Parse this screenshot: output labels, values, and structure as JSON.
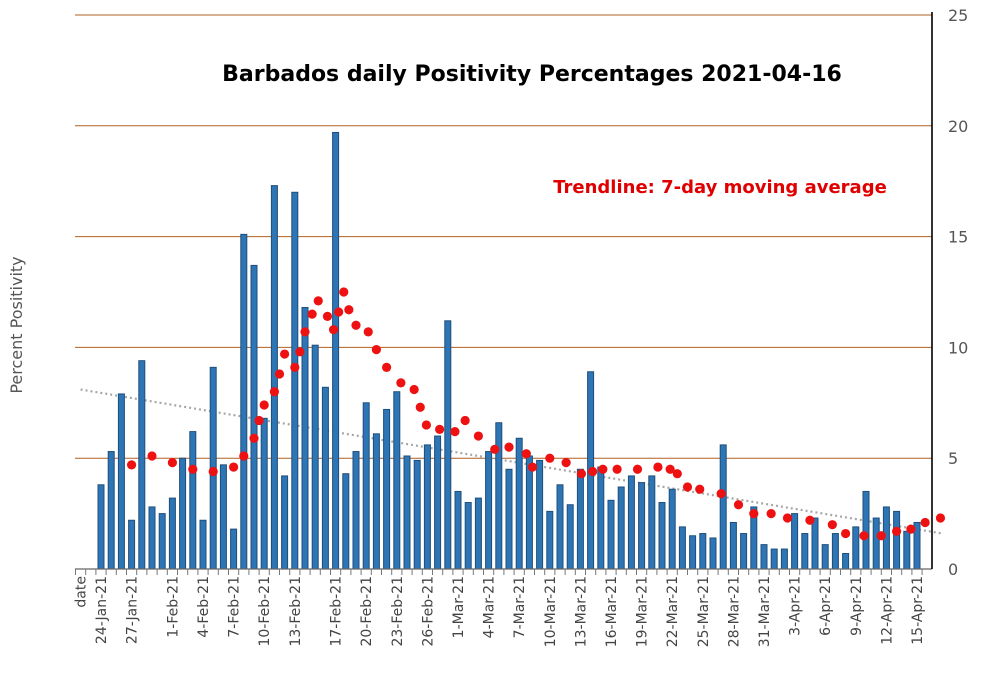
{
  "chart_data": {
    "type": "bar",
    "title": "Barbados daily Positivity Percentages 2021-04-16",
    "annotation": "Trendline: 7-day moving average",
    "xlabel": "date",
    "ylabel": "Percent Positivity",
    "ylim": [
      0,
      25
    ],
    "yticks": [
      0,
      5,
      10,
      15,
      20,
      25
    ],
    "x_tick_labels": [
      "date",
      "24-Jan-21",
      "27-Jan-21",
      "1-Feb-21",
      "4-Feb-21",
      "7-Feb-21",
      "10-Feb-21",
      "13-Feb-21",
      "17-Feb-21",
      "20-Feb-21",
      "23-Feb-21",
      "26-Feb-21",
      "1-Mar-21",
      "4-Mar-21",
      "7-Mar-21",
      "10-Mar-21",
      "13-Mar-21",
      "16-Mar-21",
      "19-Mar-21",
      "22-Mar-21",
      "25-Mar-21",
      "28-Mar-21",
      "31-Mar-21",
      "3-Apr-21",
      "6-Apr-21",
      "9-Apr-21",
      "12-Apr-21",
      "15-Apr-21"
    ],
    "x_tick_bar_index": [
      -2,
      0,
      3,
      7,
      10,
      13,
      16,
      19,
      23,
      26,
      29,
      32,
      35,
      38,
      41,
      44,
      47,
      50,
      53,
      56,
      59,
      62,
      65,
      68,
      71,
      74,
      77,
      80
    ],
    "series": [
      {
        "name": "Daily positivity (%)",
        "type": "bar",
        "values": [
          3.8,
          5.3,
          7.9,
          2.2,
          9.4,
          2.8,
          2.5,
          3.2,
          5.0,
          6.2,
          2.2,
          9.1,
          4.7,
          1.8,
          15.1,
          13.7,
          6.8,
          17.3,
          4.2,
          17.0,
          11.8,
          10.1,
          8.2,
          19.7,
          4.3,
          5.3,
          7.5,
          6.1,
          7.2,
          8.0,
          5.1,
          4.9,
          5.6,
          6.0,
          11.2,
          3.5,
          3.0,
          3.2,
          5.3,
          6.6,
          4.5,
          5.9,
          5.1,
          4.9,
          2.6,
          3.8,
          2.9,
          4.5,
          8.9,
          4.6,
          3.1,
          3.7,
          4.2,
          3.9,
          4.2,
          3.0,
          3.6,
          1.9,
          1.5,
          1.6,
          1.4,
          5.6,
          2.1,
          1.6,
          2.8,
          1.1,
          0.9,
          0.9,
          2.5,
          1.6,
          2.3,
          1.1,
          1.6,
          0.7,
          1.9,
          3.5,
          2.3,
          2.8,
          2.6,
          1.7,
          2.1
        ]
      },
      {
        "name": "7-day moving average",
        "type": "scatter",
        "points": [
          [
            3,
            4.7
          ],
          [
            5,
            5.1
          ],
          [
            7,
            4.8
          ],
          [
            9,
            4.5
          ],
          [
            11,
            4.4
          ],
          [
            13,
            4.6
          ],
          [
            14,
            5.1
          ],
          [
            15,
            5.9
          ],
          [
            15.5,
            6.7
          ],
          [
            16,
            7.4
          ],
          [
            17,
            8.0
          ],
          [
            17.5,
            8.8
          ],
          [
            18,
            9.7
          ],
          [
            19,
            9.1
          ],
          [
            19.5,
            9.8
          ],
          [
            20,
            10.7
          ],
          [
            20.7,
            11.5
          ],
          [
            21.3,
            12.1
          ],
          [
            22.2,
            11.4
          ],
          [
            22.8,
            10.8
          ],
          [
            23.3,
            11.6
          ],
          [
            23.8,
            12.5
          ],
          [
            24.3,
            11.7
          ],
          [
            25,
            11.0
          ],
          [
            26.2,
            10.7
          ],
          [
            27,
            9.9
          ],
          [
            28,
            9.1
          ],
          [
            29.4,
            8.4
          ],
          [
            30.7,
            8.1
          ],
          [
            31.3,
            7.3
          ],
          [
            31.9,
            6.5
          ],
          [
            33.2,
            6.3
          ],
          [
            34.7,
            6.2
          ],
          [
            35.7,
            6.7
          ],
          [
            37,
            6.0
          ],
          [
            38.6,
            5.4
          ],
          [
            40,
            5.5
          ],
          [
            41.7,
            5.2
          ],
          [
            42.3,
            4.6
          ],
          [
            44,
            5.0
          ],
          [
            45.6,
            4.8
          ],
          [
            47.1,
            4.3
          ],
          [
            48.2,
            4.4
          ],
          [
            49.2,
            4.5
          ],
          [
            50.6,
            4.5
          ],
          [
            52.6,
            4.5
          ],
          [
            54.6,
            4.6
          ],
          [
            55.8,
            4.5
          ],
          [
            56.5,
            4.3
          ],
          [
            57.5,
            3.7
          ],
          [
            58.7,
            3.6
          ],
          [
            60.8,
            3.4
          ],
          [
            62.5,
            2.9
          ],
          [
            64,
            2.5
          ],
          [
            65.7,
            2.5
          ],
          [
            67.3,
            2.3
          ],
          [
            69.5,
            2.2
          ],
          [
            71.7,
            2.0
          ],
          [
            73,
            1.6
          ],
          [
            74.8,
            1.5
          ],
          [
            76.5,
            1.5
          ],
          [
            78,
            1.7
          ],
          [
            79.4,
            1.8
          ],
          [
            80.8,
            2.1
          ],
          [
            82.3,
            2.3
          ]
        ]
      },
      {
        "name": "Linear trendline",
        "type": "line",
        "style": "dotted",
        "points": [
          [
            -2,
            8.1
          ],
          [
            82.5,
            1.6
          ]
        ]
      }
    ],
    "colors": {
      "bar_fill": "#2e75b6",
      "bar_stroke": "#1f4e79",
      "moving_average": "#ee1111",
      "trendline": "#a6a6a6",
      "gridline": "#b06020"
    }
  }
}
